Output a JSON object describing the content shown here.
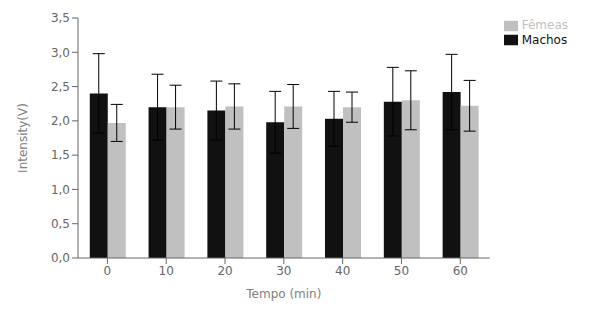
{
  "chart_data": {
    "type": "bar",
    "x_label": "Tempo (min)",
    "y_label": "Intensity(V)",
    "categories": [
      "0",
      "10",
      "20",
      "30",
      "40",
      "50",
      "60"
    ],
    "series": [
      {
        "name": "Machos",
        "color": "#111111",
        "values": [
          2.4,
          2.2,
          2.15,
          1.98,
          2.03,
          2.28,
          2.42
        ],
        "errors": [
          0.58,
          0.48,
          0.43,
          0.45,
          0.4,
          0.5,
          0.55
        ]
      },
      {
        "name": "Fêmeas",
        "color": "#c0c0c0",
        "values": [
          1.97,
          2.2,
          2.21,
          2.21,
          2.2,
          2.3,
          2.22
        ],
        "errors": [
          0.27,
          0.32,
          0.33,
          0.32,
          0.22,
          0.43,
          0.37
        ]
      }
    ],
    "ylim": [
      0,
      3.5
    ],
    "yticks": [
      {
        "value": 0.0,
        "label": "0,0"
      },
      {
        "value": 0.5,
        "label": "0,5"
      },
      {
        "value": 1.0,
        "label": "1,0"
      },
      {
        "value": 1.5,
        "label": "1,5"
      },
      {
        "value": 2.0,
        "label": "2,0"
      },
      {
        "value": 2.5,
        "label": "2,5"
      },
      {
        "value": 3.0,
        "label": "3,0"
      },
      {
        "value": 3.5,
        "label": "3,5"
      }
    ],
    "grid": false,
    "legend": "right"
  }
}
